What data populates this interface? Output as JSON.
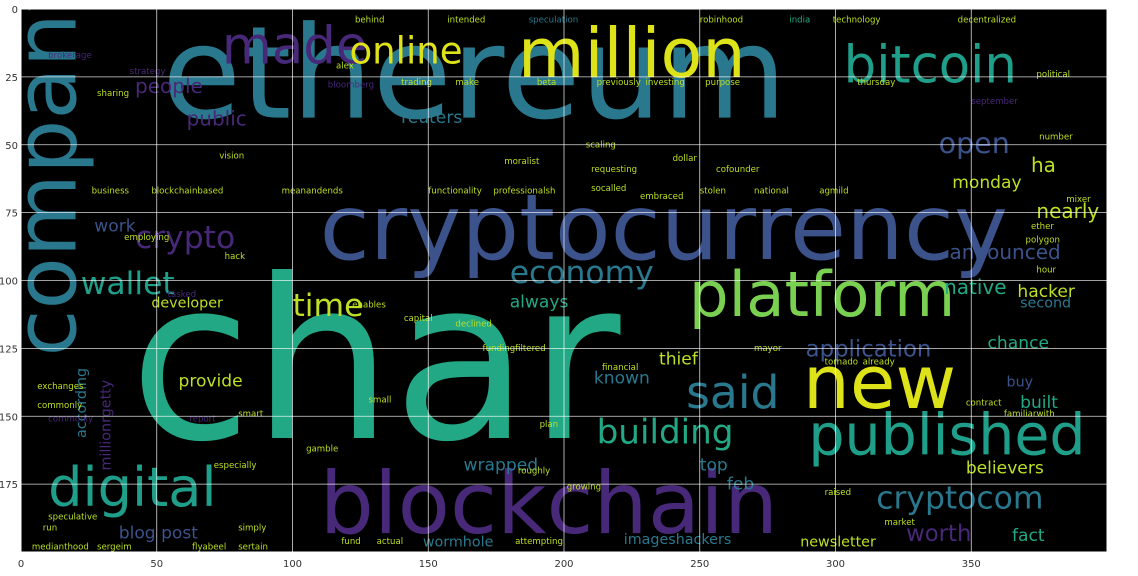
{
  "chart_data": {
    "type": "wordcloud",
    "title": "",
    "xlabel": "",
    "ylabel": "",
    "xlim": [
      0,
      400
    ],
    "ylim": [
      200,
      0
    ],
    "grid": true,
    "background": "#000000",
    "x_ticks": [
      0,
      50,
      100,
      150,
      200,
      250,
      300,
      350
    ],
    "y_ticks": [
      0,
      25,
      50,
      75,
      100,
      125,
      150,
      175
    ],
    "palette": {
      "yellow": "#dde318",
      "lightgreen": "#7ad151",
      "green": "#22a884",
      "teal": "#2a788e",
      "blue": "#3b528b",
      "purple": "#482878",
      "darkpurple": "#440154",
      "gold": "#bddf26",
      "aqua": "#1f9e89"
    },
    "words": [
      {
        "text": "ethereum",
        "x": 52,
        "y": 40,
        "size": 45,
        "color": "teal"
      },
      {
        "text": "char",
        "x": 40,
        "y": 158,
        "size": 78,
        "color": "green"
      },
      {
        "text": "cryptocurrency",
        "x": 110,
        "y": 92,
        "size": 32,
        "color": "blue"
      },
      {
        "text": "blockchain",
        "x": 110,
        "y": 193,
        "size": 30,
        "color": "purple"
      },
      {
        "text": "million",
        "x": 183,
        "y": 25,
        "size": 24,
        "color": "yellow"
      },
      {
        "text": "bitcoin",
        "x": 303,
        "y": 27,
        "size": 18,
        "color": "aqua"
      },
      {
        "text": "platform",
        "x": 246,
        "y": 113,
        "size": 22,
        "color": "lightgreen"
      },
      {
        "text": "new",
        "x": 288,
        "y": 147,
        "size": 26,
        "color": "yellow"
      },
      {
        "text": "published",
        "x": 290,
        "y": 164,
        "size": 20,
        "color": "aqua"
      },
      {
        "text": "digital",
        "x": 10,
        "y": 183,
        "size": 19,
        "color": "aqua"
      },
      {
        "text": "said",
        "x": 245,
        "y": 147,
        "size": 16,
        "color": "teal"
      },
      {
        "text": "made",
        "x": 74,
        "y": 20,
        "size": 18,
        "color": "purple"
      },
      {
        "text": "online",
        "x": 121,
        "y": 20,
        "size": 13,
        "color": "yellow"
      },
      {
        "text": "wallet",
        "x": 22,
        "y": 105,
        "size": 11,
        "color": "aqua"
      },
      {
        "text": "crypto",
        "x": 42,
        "y": 88,
        "size": 11,
        "color": "purple"
      },
      {
        "text": "economy",
        "x": 180,
        "y": 101,
        "size": 11,
        "color": "teal"
      },
      {
        "text": "time",
        "x": 100,
        "y": 113,
        "size": 11,
        "color": "gold"
      },
      {
        "text": "building",
        "x": 212,
        "y": 160,
        "size": 12,
        "color": "green"
      },
      {
        "text": "cryptocom",
        "x": 315,
        "y": 184,
        "size": 11,
        "color": "teal"
      },
      {
        "text": "open",
        "x": 338,
        "y": 53,
        "size": 10,
        "color": "blue"
      },
      {
        "text": "application",
        "x": 289,
        "y": 128,
        "size": 8,
        "color": "blue"
      },
      {
        "text": "people",
        "x": 42,
        "y": 31,
        "size": 7,
        "color": "purple"
      },
      {
        "text": "public",
        "x": 61,
        "y": 43,
        "size": 7,
        "color": "purple"
      },
      {
        "text": "work",
        "x": 27,
        "y": 82,
        "size": 6,
        "color": "blue"
      },
      {
        "text": "reuters",
        "x": 140,
        "y": 42,
        "size": 6,
        "color": "teal"
      },
      {
        "text": "monday",
        "x": 343,
        "y": 66,
        "size": 6,
        "color": "gold"
      },
      {
        "text": "ha",
        "x": 372,
        "y": 60,
        "size": 7,
        "color": "gold"
      },
      {
        "text": "nearly",
        "x": 374,
        "y": 77,
        "size": 7,
        "color": "gold"
      },
      {
        "text": "announced",
        "x": 342,
        "y": 92,
        "size": 7,
        "color": "blue"
      },
      {
        "text": "native",
        "x": 340,
        "y": 105,
        "size": 7,
        "color": "green"
      },
      {
        "text": "hacker",
        "x": 367,
        "y": 106,
        "size": 6,
        "color": "gold"
      },
      {
        "text": "developer",
        "x": 48,
        "y": 110,
        "size": 5,
        "color": "gold"
      },
      {
        "text": "always",
        "x": 180,
        "y": 110,
        "size": 6,
        "color": "green"
      },
      {
        "text": "chance",
        "x": 356,
        "y": 125,
        "size": 6,
        "color": "green"
      },
      {
        "text": "second",
        "x": 368,
        "y": 110,
        "size": 5,
        "color": "teal"
      },
      {
        "text": "provide",
        "x": 58,
        "y": 139,
        "size": 6,
        "color": "gold"
      },
      {
        "text": "known",
        "x": 211,
        "y": 138,
        "size": 6,
        "color": "teal"
      },
      {
        "text": "thief",
        "x": 235,
        "y": 131,
        "size": 6,
        "color": "gold"
      },
      {
        "text": "buy",
        "x": 363,
        "y": 139,
        "size": 5,
        "color": "blue"
      },
      {
        "text": "built",
        "x": 368,
        "y": 147,
        "size": 6,
        "color": "green"
      },
      {
        "text": "top",
        "x": 250,
        "y": 170,
        "size": 6,
        "color": "teal"
      },
      {
        "text": "wrapped",
        "x": 163,
        "y": 170,
        "size": 6,
        "color": "teal"
      },
      {
        "text": "feb",
        "x": 260,
        "y": 177,
        "size": 6,
        "color": "teal"
      },
      {
        "text": "believers",
        "x": 348,
        "y": 171,
        "size": 6,
        "color": "gold"
      },
      {
        "text": "worth",
        "x": 326,
        "y": 196,
        "size": 8,
        "color": "purple"
      },
      {
        "text": "fact",
        "x": 365,
        "y": 196,
        "size": 6,
        "color": "green"
      },
      {
        "text": "blog post",
        "x": 36,
        "y": 195,
        "size": 6,
        "color": "blue"
      },
      {
        "text": "wormhole",
        "x": 148,
        "y": 198,
        "size": 5,
        "color": "teal"
      },
      {
        "text": "imageshackers",
        "x": 222,
        "y": 197,
        "size": 5,
        "color": "teal"
      },
      {
        "text": "newsletter",
        "x": 287,
        "y": 198,
        "size": 5,
        "color": "gold"
      },
      {
        "text": "according",
        "x": 24,
        "y": 158,
        "size": 5,
        "color": "teal",
        "rotate": true
      },
      {
        "text": "millionrgetty",
        "x": 33,
        "y": 170,
        "size": 5,
        "color": "purple",
        "rotate": true
      },
      {
        "text": "company",
        "x": 20,
        "y": 128,
        "size": 30,
        "color": "teal",
        "rotate": true
      },
      {
        "text": "behind",
        "x": 123,
        "y": 5,
        "size": 3,
        "color": "gold"
      },
      {
        "text": "intended",
        "x": 157,
        "y": 5,
        "size": 3,
        "color": "gold"
      },
      {
        "text": "speculation",
        "x": 187,
        "y": 5,
        "size": 3,
        "color": "teal"
      },
      {
        "text": "robinhood",
        "x": 250,
        "y": 5,
        "size": 3,
        "color": "gold"
      },
      {
        "text": "india",
        "x": 283,
        "y": 5,
        "size": 3,
        "color": "green"
      },
      {
        "text": "technology",
        "x": 299,
        "y": 5,
        "size": 3,
        "color": "gold"
      },
      {
        "text": "decentralized",
        "x": 345,
        "y": 5,
        "size": 3,
        "color": "gold"
      },
      {
        "text": "brokerage",
        "x": 10,
        "y": 18,
        "size": 3,
        "color": "purple"
      },
      {
        "text": "strategy",
        "x": 40,
        "y": 24,
        "size": 3,
        "color": "purple"
      },
      {
        "text": "sharing",
        "x": 28,
        "y": 32,
        "size": 3,
        "color": "gold"
      },
      {
        "text": "alex",
        "x": 116,
        "y": 22,
        "size": 3,
        "color": "gold"
      },
      {
        "text": "bloomberg",
        "x": 113,
        "y": 29,
        "size": 3,
        "color": "purple"
      },
      {
        "text": "trading",
        "x": 140,
        "y": 28,
        "size": 3,
        "color": "gold"
      },
      {
        "text": "make",
        "x": 160,
        "y": 28,
        "size": 3,
        "color": "gold"
      },
      {
        "text": "beta",
        "x": 190,
        "y": 28,
        "size": 3,
        "color": "gold"
      },
      {
        "text": "previously",
        "x": 212,
        "y": 28,
        "size": 3,
        "color": "gold"
      },
      {
        "text": "investing",
        "x": 230,
        "y": 28,
        "size": 3,
        "color": "gold"
      },
      {
        "text": "purpose",
        "x": 252,
        "y": 28,
        "size": 3,
        "color": "gold"
      },
      {
        "text": "thursday",
        "x": 308,
        "y": 28,
        "size": 3,
        "color": "gold"
      },
      {
        "text": "vision",
        "x": 73,
        "y": 55,
        "size": 3,
        "color": "gold"
      },
      {
        "text": "dollar",
        "x": 240,
        "y": 56,
        "size": 3,
        "color": "gold"
      },
      {
        "text": "scaling",
        "x": 208,
        "y": 51,
        "size": 3,
        "color": "gold"
      },
      {
        "text": "moralist",
        "x": 178,
        "y": 57,
        "size": 3,
        "color": "gold"
      },
      {
        "text": "requesting",
        "x": 210,
        "y": 60,
        "size": 3,
        "color": "gold"
      },
      {
        "text": "cofounder",
        "x": 256,
        "y": 60,
        "size": 3,
        "color": "gold"
      },
      {
        "text": "business",
        "x": 26,
        "y": 68,
        "size": 3,
        "color": "gold"
      },
      {
        "text": "blockchainbased",
        "x": 48,
        "y": 68,
        "size": 3,
        "color": "gold"
      },
      {
        "text": "meanandends",
        "x": 96,
        "y": 68,
        "size": 3,
        "color": "gold"
      },
      {
        "text": "functionality",
        "x": 150,
        "y": 68,
        "size": 3,
        "color": "gold"
      },
      {
        "text": "professionalsh",
        "x": 174,
        "y": 68,
        "size": 3,
        "color": "gold"
      },
      {
        "text": "socalled",
        "x": 210,
        "y": 67,
        "size": 3,
        "color": "gold"
      },
      {
        "text": "embraced",
        "x": 228,
        "y": 70,
        "size": 3,
        "color": "gold"
      },
      {
        "text": "stolen",
        "x": 250,
        "y": 68,
        "size": 3,
        "color": "gold"
      },
      {
        "text": "national",
        "x": 270,
        "y": 68,
        "size": 3,
        "color": "gold"
      },
      {
        "text": "agmild",
        "x": 294,
        "y": 68,
        "size": 3,
        "color": "gold"
      },
      {
        "text": "employing",
        "x": 38,
        "y": 85,
        "size": 3,
        "color": "gold"
      },
      {
        "text": "hack",
        "x": 75,
        "y": 92,
        "size": 3,
        "color": "gold"
      },
      {
        "text": "exchanges",
        "x": 6,
        "y": 140,
        "size": 3,
        "color": "gold"
      },
      {
        "text": "commonly",
        "x": 6,
        "y": 147,
        "size": 3,
        "color": "gold"
      },
      {
        "text": "enables",
        "x": 122,
        "y": 110,
        "size": 3,
        "color": "gold"
      },
      {
        "text": "capital",
        "x": 141,
        "y": 115,
        "size": 3,
        "color": "gold"
      },
      {
        "text": "declined",
        "x": 160,
        "y": 117,
        "size": 3,
        "color": "gold"
      },
      {
        "text": "funding",
        "x": 170,
        "y": 126,
        "size": 3,
        "color": "gold"
      },
      {
        "text": "filtered",
        "x": 182,
        "y": 126,
        "size": 3,
        "color": "gold"
      },
      {
        "text": "financial",
        "x": 214,
        "y": 133,
        "size": 3,
        "color": "gold"
      },
      {
        "text": "mayor",
        "x": 270,
        "y": 126,
        "size": 3,
        "color": "gold"
      },
      {
        "text": "tornado",
        "x": 296,
        "y": 131,
        "size": 3,
        "color": "gold"
      },
      {
        "text": "already",
        "x": 310,
        "y": 131,
        "size": 3,
        "color": "gold"
      },
      {
        "text": "small",
        "x": 128,
        "y": 145,
        "size": 3,
        "color": "gold"
      },
      {
        "text": "smart",
        "x": 80,
        "y": 150,
        "size": 3,
        "color": "gold"
      },
      {
        "text": "plan",
        "x": 191,
        "y": 154,
        "size": 3,
        "color": "gold"
      },
      {
        "text": "especially",
        "x": 71,
        "y": 169,
        "size": 3,
        "color": "gold"
      },
      {
        "text": "gamble",
        "x": 105,
        "y": 163,
        "size": 3,
        "color": "gold"
      },
      {
        "text": "roughly",
        "x": 183,
        "y": 171,
        "size": 3,
        "color": "gold"
      },
      {
        "text": "growing",
        "x": 201,
        "y": 177,
        "size": 3,
        "color": "gold"
      },
      {
        "text": "run",
        "x": 8,
        "y": 192,
        "size": 3,
        "color": "gold"
      },
      {
        "text": "speculative",
        "x": 10,
        "y": 188,
        "size": 3,
        "color": "gold"
      },
      {
        "text": "simply",
        "x": 80,
        "y": 192,
        "size": 3,
        "color": "gold"
      },
      {
        "text": "medianthood",
        "x": 4,
        "y": 199,
        "size": 3,
        "color": "gold"
      },
      {
        "text": "sergeim",
        "x": 28,
        "y": 199,
        "size": 3,
        "color": "gold"
      },
      {
        "text": "flyabeel",
        "x": 63,
        "y": 199,
        "size": 3,
        "color": "gold"
      },
      {
        "text": "sertain",
        "x": 80,
        "y": 199,
        "size": 3,
        "color": "gold"
      },
      {
        "text": "attempting",
        "x": 182,
        "y": 197,
        "size": 3,
        "color": "gold"
      },
      {
        "text": "fund",
        "x": 118,
        "y": 197,
        "size": 3,
        "color": "gold"
      },
      {
        "text": "actual",
        "x": 131,
        "y": 197,
        "size": 3,
        "color": "gold"
      },
      {
        "text": "market",
        "x": 318,
        "y": 190,
        "size": 3,
        "color": "gold"
      },
      {
        "text": "polygon",
        "x": 370,
        "y": 86,
        "size": 3,
        "color": "gold"
      },
      {
        "text": "hour",
        "x": 374,
        "y": 97,
        "size": 3,
        "color": "gold"
      },
      {
        "text": "ether",
        "x": 372,
        "y": 81,
        "size": 3,
        "color": "gold"
      },
      {
        "text": "mixer",
        "x": 385,
        "y": 71,
        "size": 3,
        "color": "gold"
      },
      {
        "text": "familiarwith",
        "x": 362,
        "y": 150,
        "size": 3,
        "color": "gold"
      },
      {
        "text": "contract",
        "x": 348,
        "y": 146,
        "size": 3,
        "color": "gold"
      },
      {
        "text": "raised",
        "x": 296,
        "y": 179,
        "size": 3,
        "color": "gold"
      },
      {
        "text": "commonly",
        "x": 10,
        "y": 152,
        "size": 3,
        "color": "purple"
      },
      {
        "text": "report",
        "x": 62,
        "y": 152,
        "size": 3,
        "color": "purple"
      },
      {
        "text": "tasked",
        "x": 54,
        "y": 106,
        "size": 3,
        "color": "purple"
      },
      {
        "text": "political",
        "x": 374,
        "y": 25,
        "size": 3,
        "color": "gold"
      },
      {
        "text": "number",
        "x": 375,
        "y": 48,
        "size": 3,
        "color": "gold"
      },
      {
        "text": "september",
        "x": 350,
        "y": 35,
        "size": 3,
        "color": "purple"
      }
    ]
  }
}
